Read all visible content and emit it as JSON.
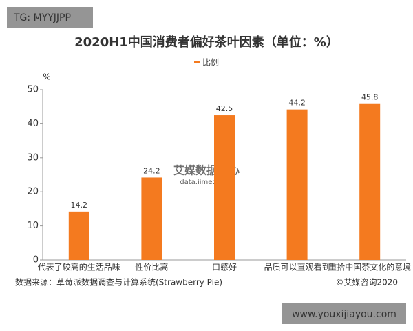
{
  "chart_data": {
    "type": "bar",
    "title": "2020H1中国消费者偏好茶叶因素（单位：%）",
    "y_axis_label": "%",
    "series": [
      {
        "name": "比例",
        "color": "#f47a1f",
        "values": [
          14.2,
          24.2,
          42.5,
          44.2,
          45.8
        ]
      }
    ],
    "categories": [
      "代表了较高的生活品味",
      "性价比高",
      "口感好",
      "品质可以直观看到",
      "重拾中国茶文化的意境"
    ],
    "ylim": [
      0,
      50
    ],
    "yticks": [
      0,
      10,
      20,
      30,
      40,
      50
    ],
    "grid": false,
    "source": "数据来源：草莓派数据调查与计算系统(Strawberry Pie)",
    "copyright": "©艾媒咨询2020",
    "watermark": {
      "brand": "艾媒数据中心",
      "url": "data.iimedia.cn"
    }
  },
  "overlays": {
    "top_left": "TG: MYYJJPP",
    "bottom_right": "www.youxijiayou.com"
  }
}
